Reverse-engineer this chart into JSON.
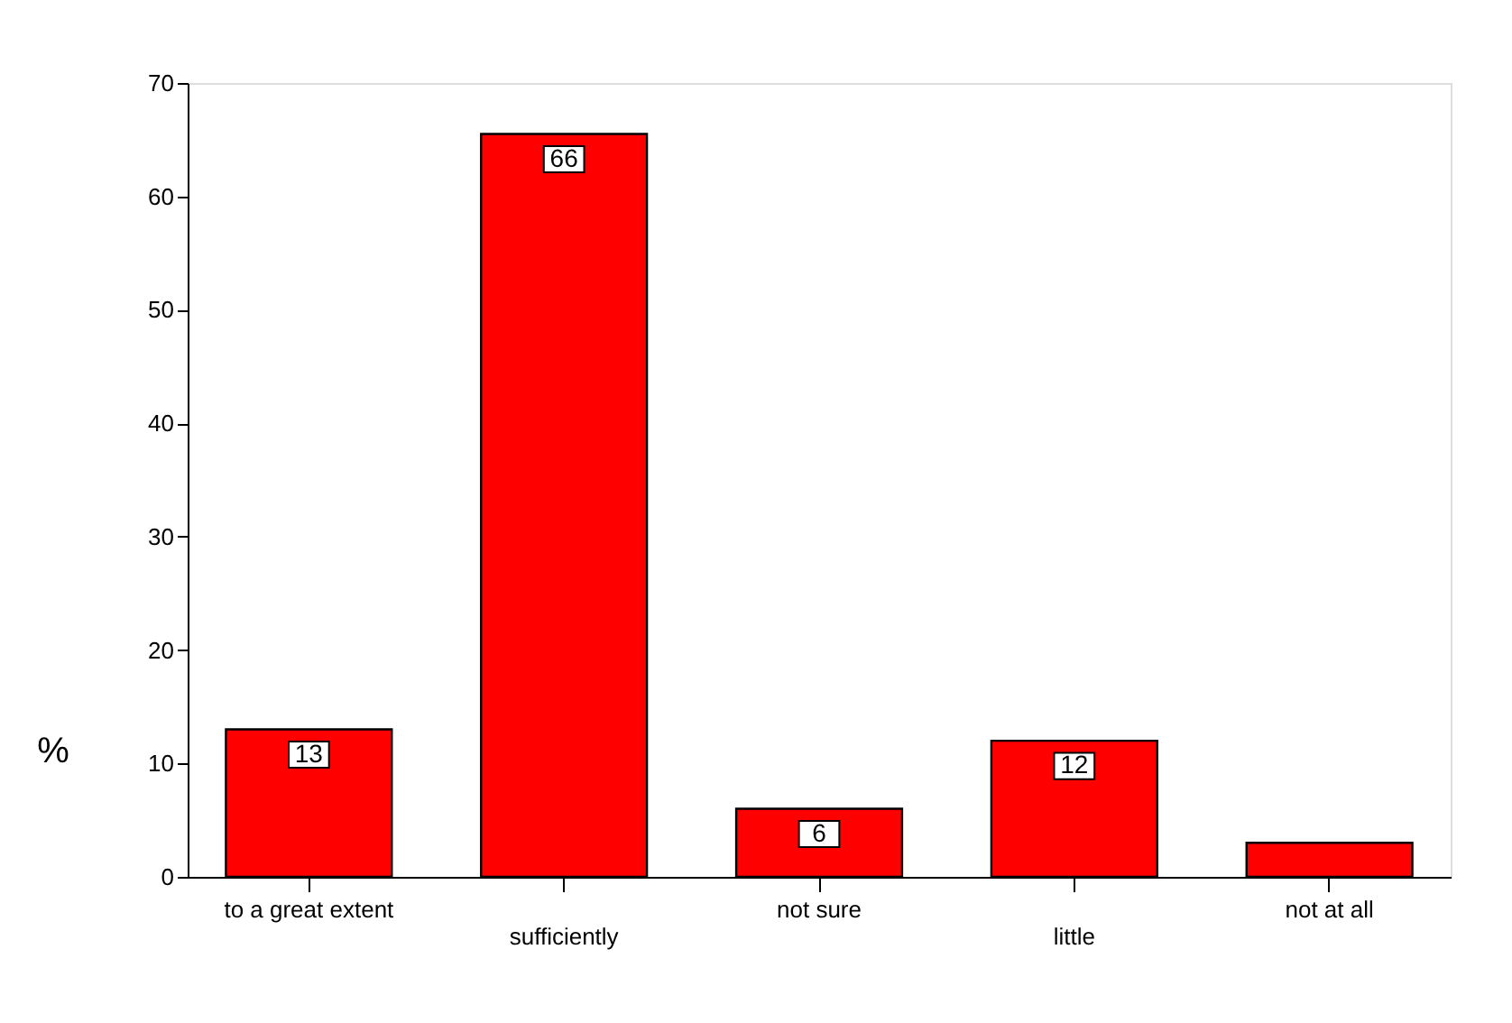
{
  "chart_data": {
    "type": "bar",
    "ylabel": "%",
    "categories": [
      "to a great extent",
      "sufficiently",
      "not sure",
      "little",
      "not at all"
    ],
    "values": [
      13,
      65.5,
      6,
      12,
      3
    ],
    "value_labels": [
      "13",
      "66",
      "6",
      "12",
      null
    ],
    "color": "#ff0000",
    "ylim": [
      0,
      70
    ],
    "yticks": [
      0,
      10,
      20,
      30,
      40,
      50,
      60,
      70
    ],
    "grid": false
  }
}
